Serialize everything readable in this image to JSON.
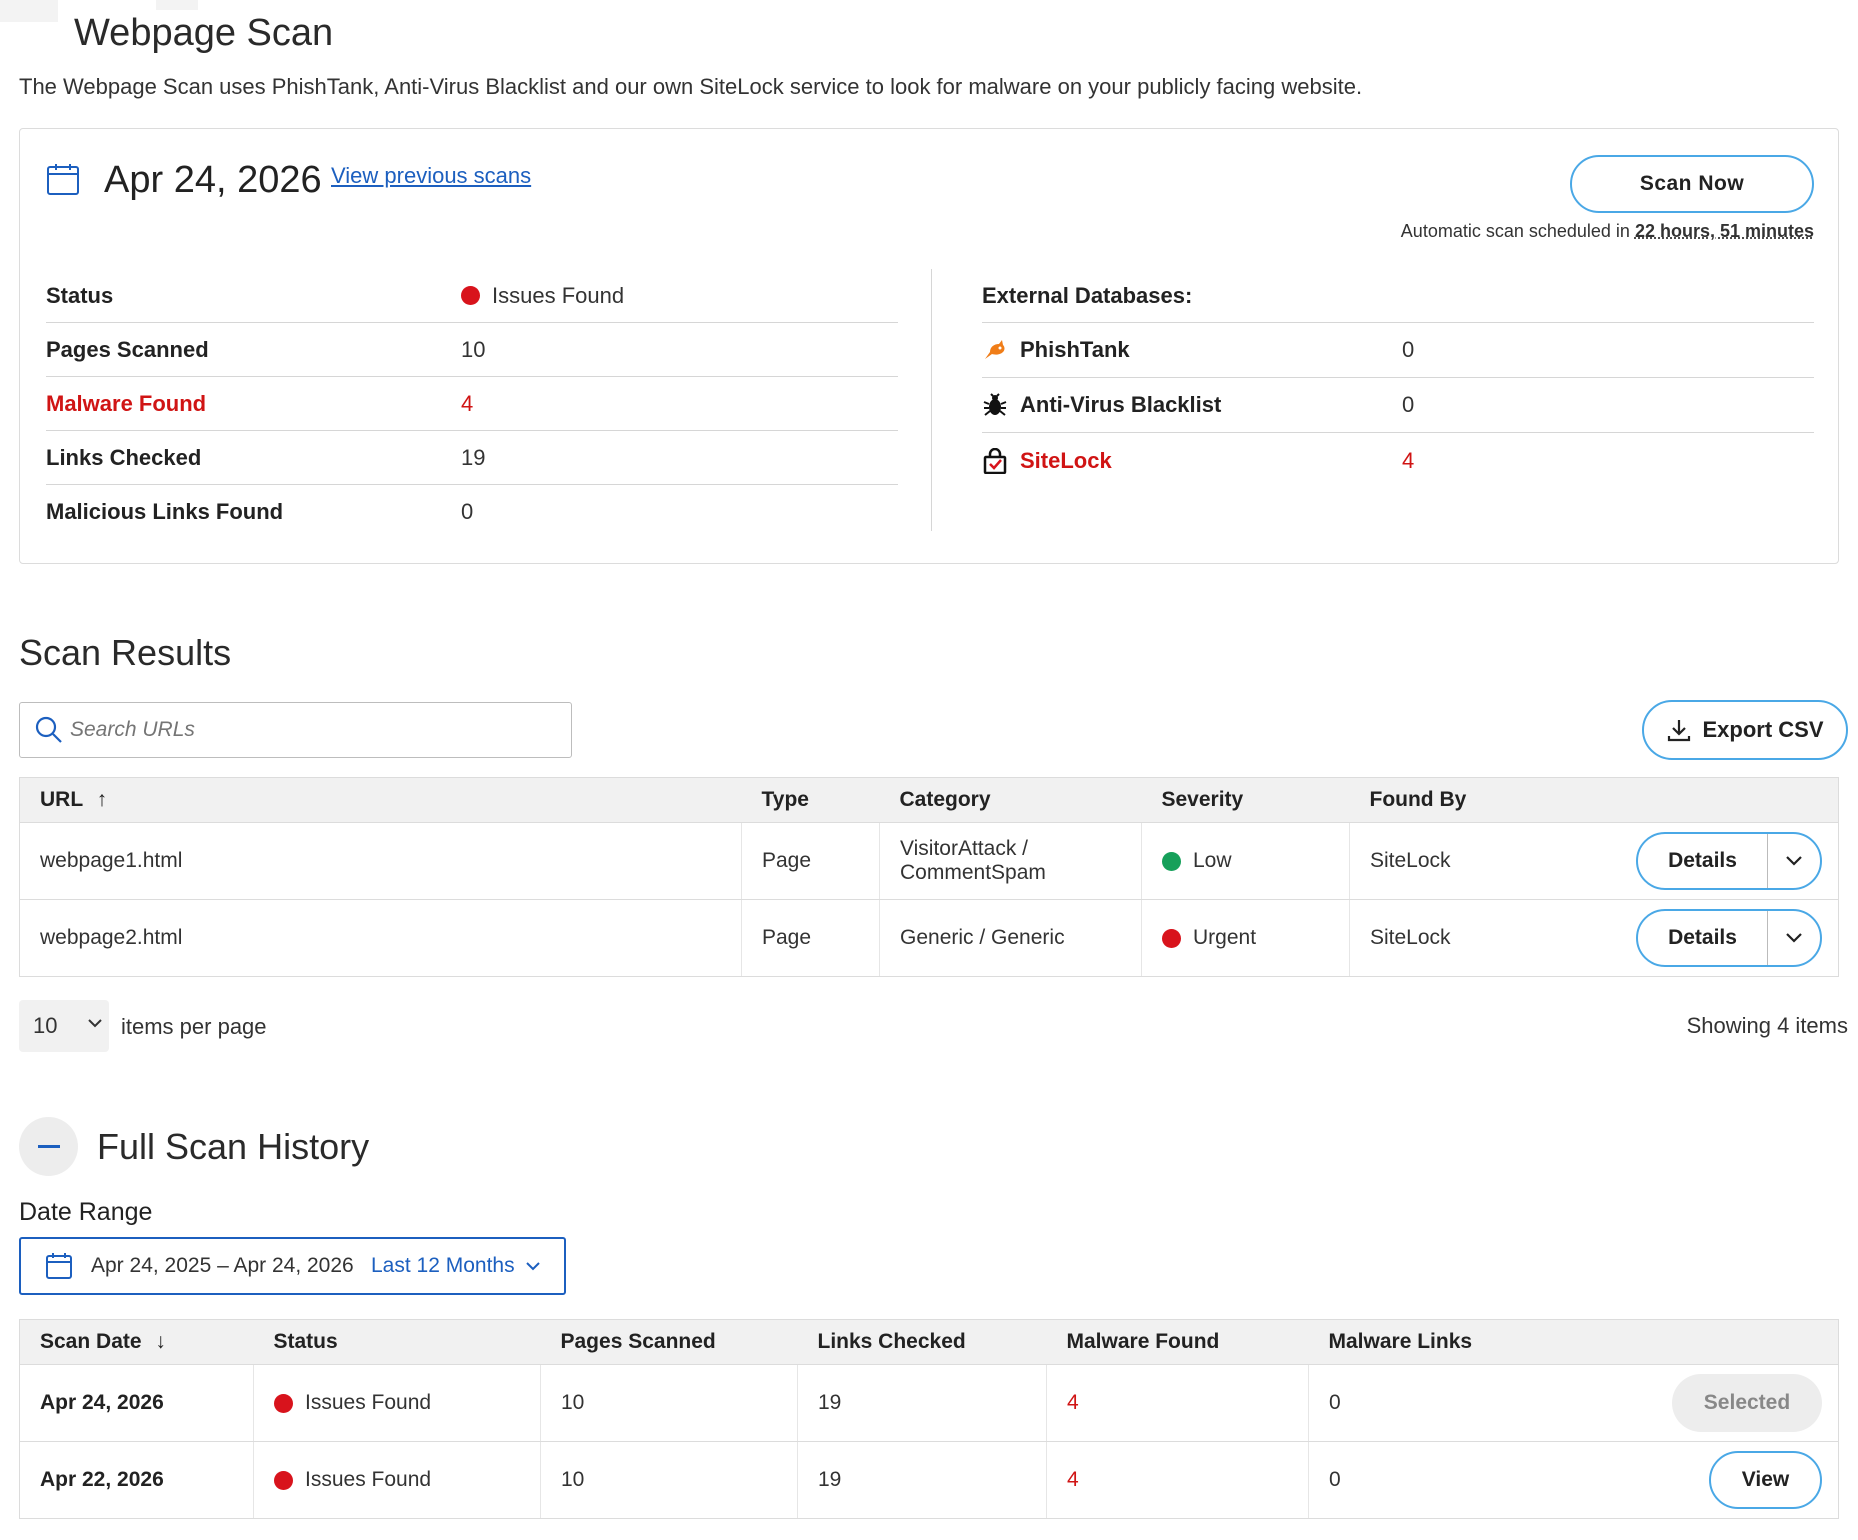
{
  "header": {
    "title": "Webpage Scan",
    "description": "The Webpage Scan uses PhishTank, Anti-Virus Blacklist and our own SiteLock service to look for malware on your publicly facing website."
  },
  "scan_card": {
    "date": "Apr 24, 2026",
    "previous_link": "View previous scans",
    "scan_now_label": "Scan Now",
    "auto_prefix": "Automatic scan scheduled in ",
    "auto_duration": "22 hours, 51 minutes",
    "stats": [
      {
        "label": "Status",
        "value": "Issues Found"
      },
      {
        "label": "Pages Scanned",
        "value": "10"
      },
      {
        "label": "Malware Found",
        "value": "4"
      },
      {
        "label": "Links Checked",
        "value": "19"
      },
      {
        "label": "Malicious Links Found",
        "value": "0"
      }
    ],
    "external_title": "External Databases:",
    "external": [
      {
        "name": "PhishTank",
        "value": "0",
        "icon": "fish-icon"
      },
      {
        "name": "Anti-Virus Blacklist",
        "value": "0",
        "icon": "bug-icon"
      },
      {
        "name": "SiteLock",
        "value": "4",
        "icon": "sitelock-icon"
      }
    ]
  },
  "results": {
    "title": "Scan Results",
    "search_placeholder": "Search URLs",
    "export_label": "Export CSV",
    "columns": [
      "URL",
      "Type",
      "Category",
      "Severity",
      "Found By"
    ],
    "rows": [
      {
        "url": "webpage1.html",
        "type": "Page",
        "category_1": "VisitorAttack /",
        "category_2": "CommentSpam",
        "severity": "Low",
        "found_by": "SiteLock",
        "action": "Details"
      },
      {
        "url": "webpage2.html",
        "type": "Page",
        "category_1": "Generic / Generic",
        "category_2": "",
        "severity": "Urgent",
        "found_by": "SiteLock",
        "action": "Details"
      }
    ],
    "per_page": "10",
    "per_page_label": "items per page",
    "showing": "Showing 4 items"
  },
  "history": {
    "title": "Full Scan History",
    "date_range_label": "Date Range",
    "date_range": "Apr 24, 2025 – Apr 24, 2026",
    "preset": "Last 12 Months",
    "columns": [
      "Scan Date",
      "Status",
      "Pages Scanned",
      "Links Checked",
      "Malware Found",
      "Malware Links"
    ],
    "rows": [
      {
        "date": "Apr 24, 2026",
        "status": "Issues Found",
        "pages": "10",
        "links": "19",
        "malware": "4",
        "malware_links": "0",
        "action": "Selected"
      },
      {
        "date": "Apr 22, 2026",
        "status": "Issues Found",
        "pages": "10",
        "links": "19",
        "malware": "4",
        "malware_links": "0",
        "action": "View"
      }
    ]
  },
  "colors": {
    "accent": "#4aa8e6",
    "link": "#1c5fbf",
    "danger": "#d8131c",
    "success": "#16a05a"
  }
}
